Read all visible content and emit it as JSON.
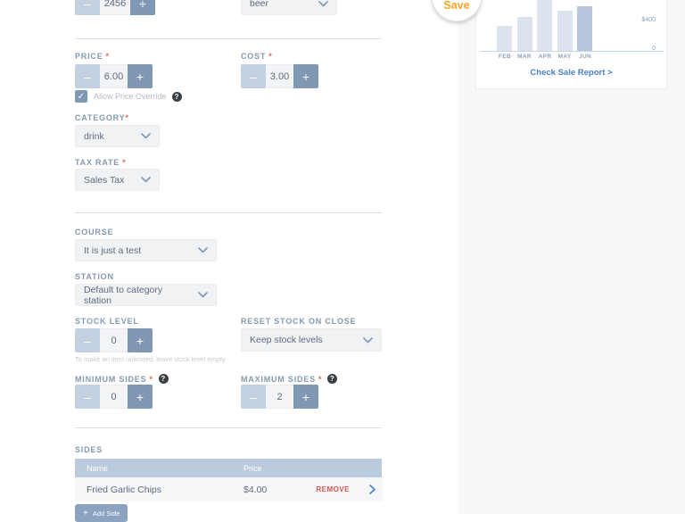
{
  "ui": {
    "minus": "–",
    "plus": "+",
    "help": "?",
    "check": "✓"
  },
  "form": {
    "quantity": {
      "value": "2456"
    },
    "unit_dropdown": {
      "value": "beer"
    },
    "price": {
      "label": "PRICE",
      "required": "*",
      "value": "6.00"
    },
    "cost": {
      "label": "COST",
      "required": "*",
      "value": "3.00"
    },
    "allow_price_override": {
      "label": "Allow Price Override",
      "checked": true
    },
    "category": {
      "label": "CATEGORY",
      "required": "*",
      "value": "drink"
    },
    "tax_rate": {
      "label": "TAX RATE",
      "required": "*",
      "value": "Sales Tax"
    },
    "course": {
      "label": "COURSE",
      "value": "It is just a test"
    },
    "station": {
      "label": "STATION",
      "value": "Default to category station"
    },
    "stock_level": {
      "label": "STOCK LEVEL",
      "value": "0",
      "helper": "To make an item unlimited, leave stock level empty"
    },
    "reset_stock": {
      "label": "RESET STOCK ON CLOSE",
      "value": "Keep stock levels"
    },
    "minimum_sides": {
      "label": "MINIMUM SIDES",
      "required": "*",
      "value": "0"
    },
    "maximum_sides": {
      "label": "MAXIMUM SIDES",
      "required": "*",
      "value": "2"
    },
    "sides": {
      "label": "SIDES",
      "columns": [
        "Name",
        "Price"
      ],
      "rows": [
        {
          "name": "Fried Garlic Chips",
          "price": "$4.00",
          "remove_label": "REMOVE"
        }
      ],
      "add_button_label": "Add Side"
    }
  },
  "save_button": {
    "label": "Save"
  },
  "sales_card": {
    "link": "Check Sale Report >"
  },
  "chart_data": {
    "type": "bar",
    "categories": [
      "FEB",
      "MAR",
      "APR",
      "MAY",
      "JUN"
    ],
    "values": [
      330,
      450,
      760,
      530,
      590
    ],
    "y_ticks": [
      "$400",
      "0"
    ],
    "ylim": [
      0,
      400
    ],
    "highlight_index": 4,
    "legend": "none",
    "grid": "off"
  },
  "colors": {
    "accent_blue": "#4a7ec9",
    "label_blue_gray": "#8599af",
    "stepper_minus": "#c3d0e1",
    "stepper_plus": "#8098b6",
    "table_header": "#bccadd",
    "remove_red": "#e0514a",
    "save_orange": "#f5a623",
    "bar_light": "#dde3ee",
    "bar_highlight": "#b8c5da"
  }
}
